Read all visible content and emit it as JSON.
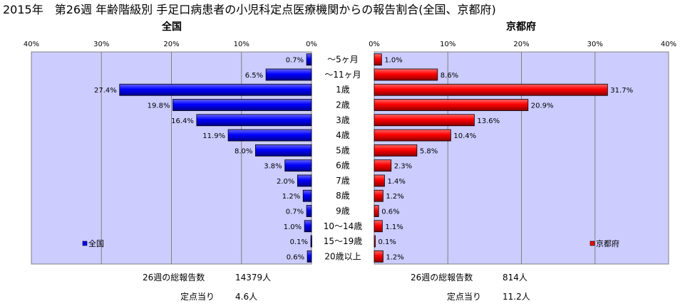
{
  "title": "2015年　第26週 年齢階級別 手足口病患者の小児科定点医療機関からの報告割合(全国、京都府)",
  "chart_data": [
    {
      "type": "bar",
      "orientation": "horizontal",
      "direction": "right-to-left",
      "title": "全国",
      "xlim": [
        0,
        40
      ],
      "ticks": [
        "40%",
        "30%",
        "20%",
        "10%",
        "0%"
      ],
      "tick_values": [
        40,
        30,
        20,
        10,
        0
      ],
      "grid": true,
      "legend": "bottom-left",
      "categories": [
        "～5ヶ月",
        "～11ヶ月",
        "1歳",
        "2歳",
        "3歳",
        "4歳",
        "5歳",
        "6歳",
        "7歳",
        "8歳",
        "9歳",
        "10～14歳",
        "15～19歳",
        "20歳以上"
      ],
      "series": [
        {
          "name": "全国",
          "color": "#0000ff",
          "values": [
            0.7,
            6.5,
            27.4,
            19.8,
            16.4,
            11.9,
            8.0,
            3.8,
            2.0,
            1.2,
            0.7,
            1.0,
            0.1,
            0.6
          ],
          "labels": [
            "0.7%",
            "6.5%",
            "27.4%",
            "19.8%",
            "16.4%",
            "11.9%",
            "8.0%",
            "3.8%",
            "2.0%",
            "1.2%",
            "0.7%",
            "1.0%",
            "0.1%",
            "0.6%"
          ]
        }
      ],
      "footer": [
        {
          "label": "26週の総報告数",
          "value": "14379人"
        },
        {
          "label": "定点当り",
          "value": "4.6人"
        }
      ]
    },
    {
      "type": "bar",
      "orientation": "horizontal",
      "direction": "left-to-right",
      "title": "京都府",
      "xlim": [
        0,
        40
      ],
      "ticks": [
        "0%",
        "10%",
        "20%",
        "30%",
        "40%"
      ],
      "tick_values": [
        0,
        10,
        20,
        30,
        40
      ],
      "grid": true,
      "legend": "bottom-right",
      "categories": [
        "～5ヶ月",
        "～11ヶ月",
        "1歳",
        "2歳",
        "3歳",
        "4歳",
        "5歳",
        "6歳",
        "7歳",
        "8歳",
        "9歳",
        "10～14歳",
        "15～19歳",
        "20歳以上"
      ],
      "series": [
        {
          "name": "京都府",
          "color": "#ff0000",
          "values": [
            1.0,
            8.6,
            31.7,
            20.9,
            13.6,
            10.4,
            5.8,
            2.3,
            1.4,
            1.2,
            0.6,
            1.1,
            0.1,
            1.2
          ],
          "labels": [
            "1.0%",
            "8.6%",
            "31.7%",
            "20.9%",
            "13.6%",
            "10.4%",
            "5.8%",
            "2.3%",
            "1.4%",
            "1.2%",
            "0.6%",
            "1.1%",
            "0.1%",
            "1.2%"
          ]
        }
      ],
      "footer": [
        {
          "label": "26週の総報告数",
          "value": "814人"
        },
        {
          "label": "定点当り",
          "value": "11.2人"
        }
      ]
    }
  ],
  "colors": {
    "plot_background": "#ccccff",
    "gridline": "#808080",
    "left_bar": "#0000ff",
    "right_bar": "#ff0000"
  }
}
